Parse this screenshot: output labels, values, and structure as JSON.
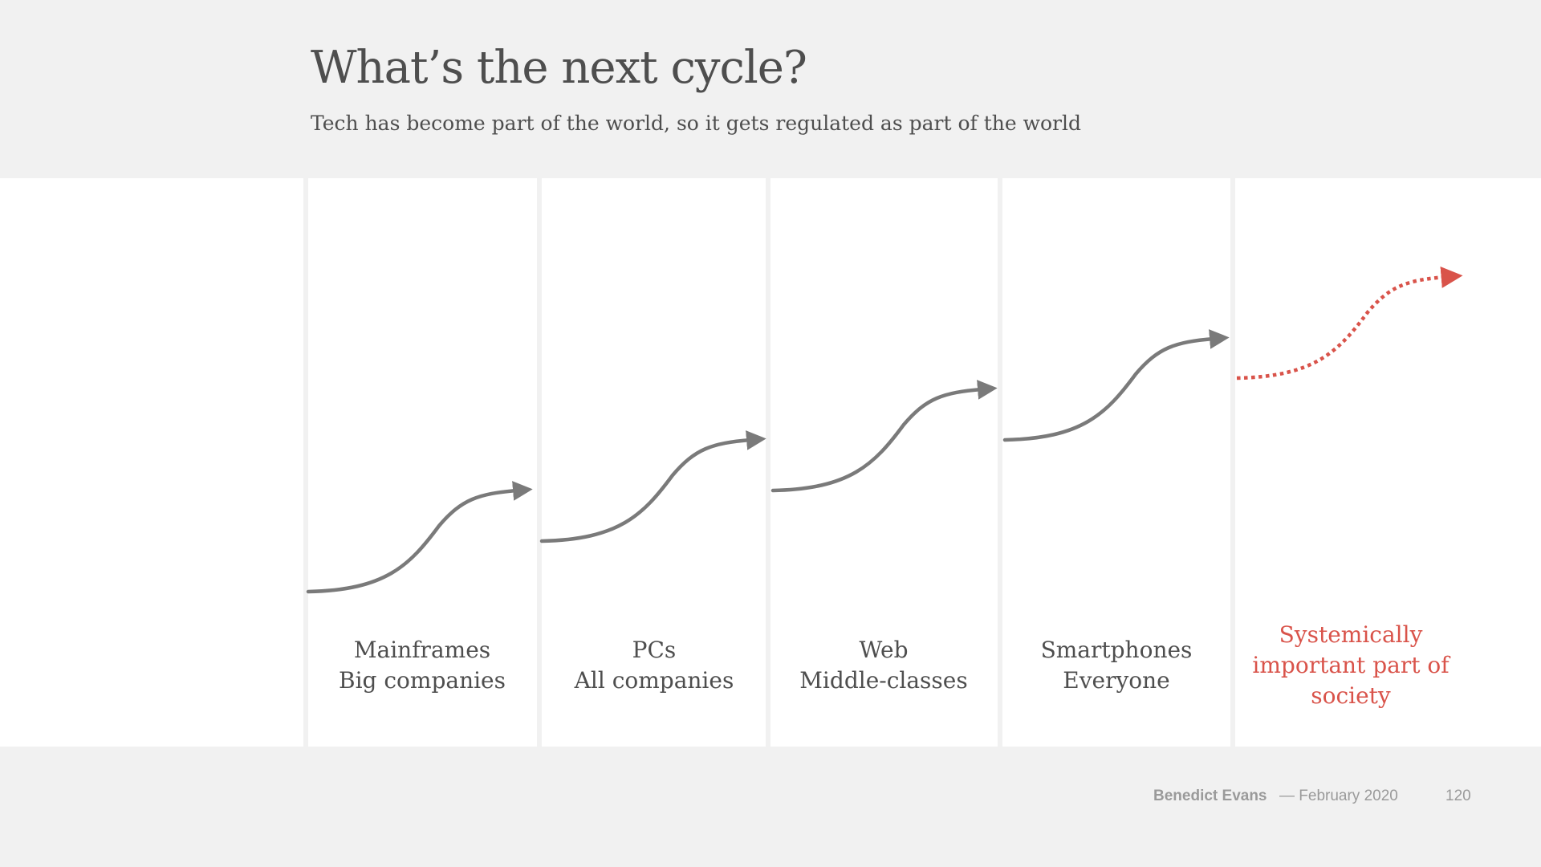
{
  "slide": {
    "title": "What’s the next cycle?",
    "subtitle": "Tech has become part of the world, so it gets regulated as part of the world"
  },
  "cycles": [
    {
      "line1": "Mainframes",
      "line2": "Big companies"
    },
    {
      "line1": "PCs",
      "line2": "All companies"
    },
    {
      "line1": "Web",
      "line2": "Middle-classes"
    },
    {
      "line1": "Smartphones",
      "line2": "Everyone"
    },
    {
      "line1": "Systemically",
      "line2": "important part of",
      "line3": "society"
    }
  ],
  "colors": {
    "arrow": "#7a7a7a",
    "future": "#d9534a",
    "text": "#4e4e4e",
    "background": "#f1f1f1"
  },
  "footer": {
    "author": "Benedict Evans",
    "date": "— February 2020",
    "page": "120"
  }
}
